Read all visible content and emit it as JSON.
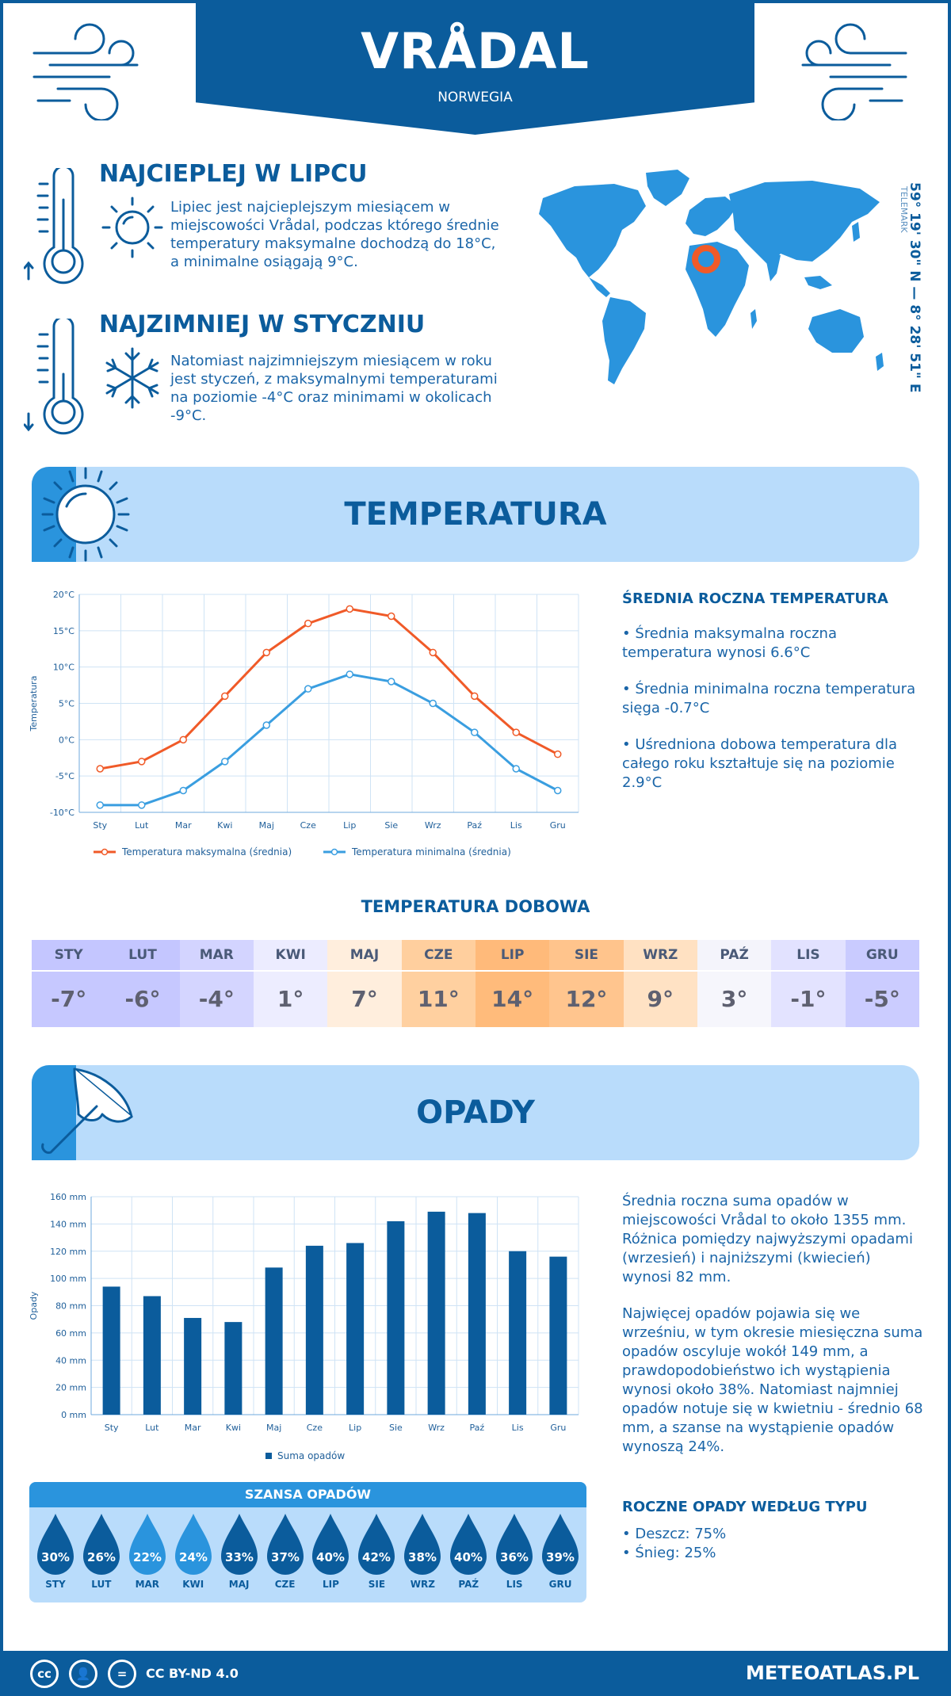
{
  "header": {
    "city": "VRÅDAL",
    "country": "NORWEGIA"
  },
  "hottest": {
    "title": "NAJCIEPLEJ W LIPCU",
    "text": "Lipiec jest najcieplejszym miesiącem w miejscowości Vrådal, podczas którego średnie temperatury maksymalne dochodzą do 18°C, a minimalne osiągają 9°C."
  },
  "coldest": {
    "title": "NAJZIMNIEJ W STYCZNIU",
    "text": "Natomiast najzimniejszym miesiącem w roku jest styczeń, z maksymalnymi temperaturami na poziomie -4°C oraz minimami w okolicach -9°C."
  },
  "location": {
    "coords": "59° 19' 30\" N — 8° 28' 51\" E",
    "region": "TELEMARK"
  },
  "temperature_section": {
    "title": "TEMPERATURA",
    "summary_title": "ŚREDNIA ROCZNA TEMPERATURA",
    "bullets": [
      "• Średnia maksymalna roczna temperatura wynosi 6.6°C",
      "• Średnia minimalna roczna temperatura sięga -0.7°C",
      "• Uśredniona dobowa temperatura dla całego roku kształtuje się na poziomie 2.9°C"
    ]
  },
  "daily_section": {
    "title": "TEMPERATURA DOBOWA",
    "months": [
      "STY",
      "LUT",
      "MAR",
      "KWI",
      "MAJ",
      "CZE",
      "LIP",
      "SIE",
      "WRZ",
      "PAŹ",
      "LIS",
      "GRU"
    ],
    "values": [
      "-7°",
      "-6°",
      "-4°",
      "1°",
      "7°",
      "11°",
      "14°",
      "12°",
      "9°",
      "3°",
      "-1°",
      "-5°"
    ],
    "header_colors": [
      "#c4c6ff",
      "#c4c6ff",
      "#d3d4ff",
      "#ececff",
      "#ffeedd",
      "#ffcf9e",
      "#ffba7a",
      "#ffc48c",
      "#ffe1c2",
      "#f4f4fb",
      "#e2e2ff",
      "#c9cbff"
    ],
    "value_colors": [
      "#c6c8ff",
      "#c6c8ff",
      "#d4d5ff",
      "#ededff",
      "#ffeedd",
      "#ffd0a0",
      "#ffbb7b",
      "#ffc58e",
      "#ffe2c4",
      "#f6f6fc",
      "#e3e3ff",
      "#cbccff"
    ]
  },
  "precip_section": {
    "title": "OPADY",
    "text1": "Średnia roczna suma opadów w miejscowości Vrådal to około 1355 mm. Różnica pomiędzy najwyższymi opadami (wrzesień) i najniższymi (kwiecień) wynosi 82 mm.",
    "text2": "Najwięcej opadów pojawia się we wrześniu, w tym okresie miesięczna suma opadów oscyluje wokół 149 mm, a prawdopodobieństwo ich wystąpienia wynosi około 38%. Natomiast najmniej opadów notuje się w kwietniu - średnio 68 mm, a szanse na wystąpienie opadów wynoszą 24%.",
    "type_title": "ROCZNE OPADY WEDŁUG TYPU",
    "types": [
      "• Deszcz: 75%",
      "• Śnieg: 25%"
    ]
  },
  "chance_section": {
    "title": "SZANSA OPADÓW",
    "months": [
      "STY",
      "LUT",
      "MAR",
      "KWI",
      "MAJ",
      "CZE",
      "LIP",
      "SIE",
      "WRZ",
      "PAŹ",
      "LIS",
      "GRU"
    ],
    "values": [
      "30%",
      "26%",
      "22%",
      "24%",
      "33%",
      "37%",
      "40%",
      "42%",
      "38%",
      "40%",
      "36%",
      "39%"
    ],
    "colors": [
      "#0b5c9c",
      "#0b5c9c",
      "#2a94dd",
      "#2a94dd",
      "#0b5c9c",
      "#0b5c9c",
      "#0b5c9c",
      "#0b5c9c",
      "#0b5c9c",
      "#0b5c9c",
      "#0b5c9c",
      "#0b5c9c"
    ]
  },
  "footer": {
    "license": "CC BY-ND 4.0",
    "site": "METEOATLAS.PL"
  },
  "chart_data": [
    {
      "type": "line",
      "categories": [
        "Sty",
        "Lut",
        "Mar",
        "Kwi",
        "Maj",
        "Cze",
        "Lip",
        "Sie",
        "Wrz",
        "Paź",
        "Lis",
        "Gru"
      ],
      "ylabel": "Temperatura",
      "ylim": [
        -10,
        20
      ],
      "yticks": [
        "20°C",
        "15°C",
        "10°C",
        "5°C",
        "0°C",
        "-5°C",
        "-10°C"
      ],
      "grid": true,
      "legend": "bottom",
      "series": [
        {
          "name": "Temperatura maksymalna (średnia)",
          "color": "#f05a28",
          "values": [
            -4,
            -3,
            0,
            6,
            12,
            16,
            18,
            17,
            12,
            6,
            1,
            -2
          ]
        },
        {
          "name": "Temperatura minimalna (średnia)",
          "color": "#3a9ee0",
          "values": [
            -9,
            -9,
            -7,
            -3,
            2,
            7,
            9,
            8,
            5,
            1,
            -4,
            -7
          ]
        }
      ]
    },
    {
      "type": "bar",
      "categories": [
        "Sty",
        "Lut",
        "Mar",
        "Kwi",
        "Maj",
        "Cze",
        "Lip",
        "Sie",
        "Wrz",
        "Paź",
        "Lis",
        "Gru"
      ],
      "ylabel": "Opady",
      "ylim": [
        0,
        160
      ],
      "yticks": [
        "160 mm",
        "140 mm",
        "120 mm",
        "100 mm",
        "80 mm",
        "60 mm",
        "40 mm",
        "20 mm",
        "0 mm"
      ],
      "grid": true,
      "legend": "bottom",
      "series": [
        {
          "name": "Suma opadów",
          "color": "#0b5c9c",
          "values": [
            94,
            87,
            71,
            68,
            108,
            124,
            126,
            142,
            149,
            148,
            120,
            116
          ]
        }
      ]
    }
  ]
}
